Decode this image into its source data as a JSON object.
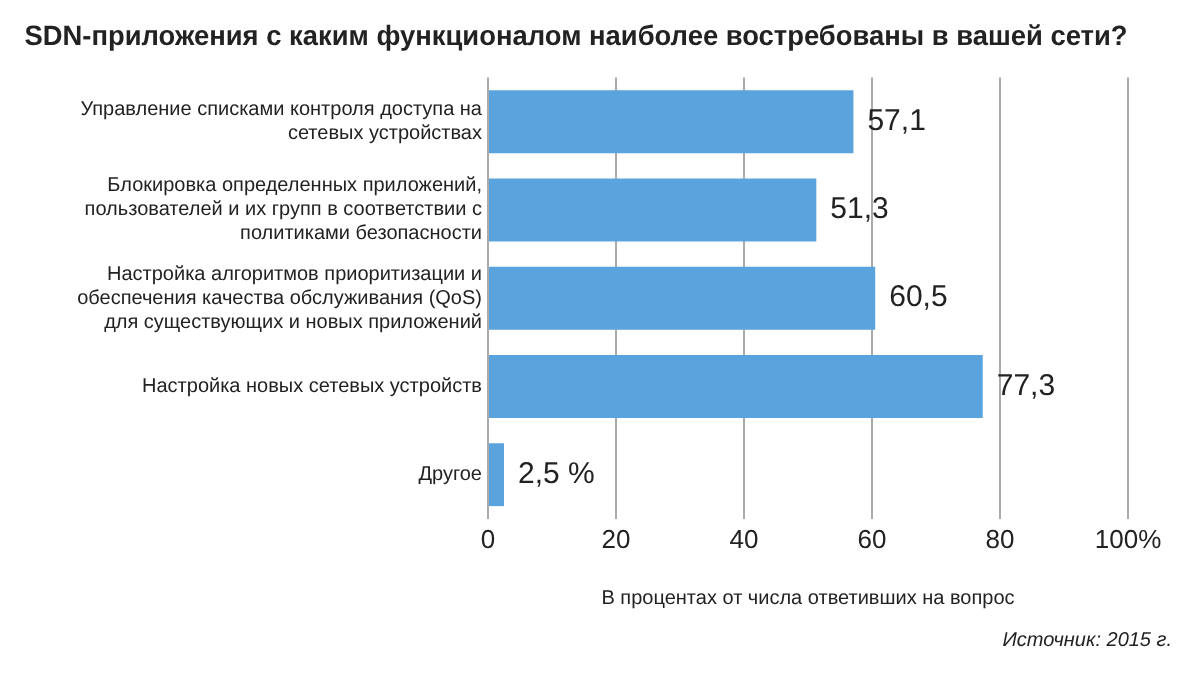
{
  "chart_data": {
    "type": "bar",
    "orientation": "horizontal",
    "title": "SDN-приложения с каким функционалом наиболее востребованы в вашей сети?",
    "categories": [
      "Управление списками контроля доступа на сетевых устройствах",
      "Блокировка определенных приложений, пользователей и их групп в соответствии с политиками безопасности",
      "Настройка алгоритмов приоритизации и обеспечения качества обслуживания (QoS) для существующих и новых приложений",
      "Настройка новых сетевых устройств",
      "Другое"
    ],
    "values": [
      57.1,
      51.3,
      60.5,
      77.3,
      2.5
    ],
    "value_labels": [
      "57,1",
      "51,3",
      "60,5",
      "77,3",
      "2,5 %"
    ],
    "color": "#5ba3dc",
    "xlim": [
      0,
      100
    ],
    "xticks": [
      0,
      20,
      40,
      60,
      80,
      {
        "value": 100,
        "label": "100%"
      }
    ],
    "xlabel": "В процентах от числа ответивших на вопрос",
    "grid": "x",
    "legend": false,
    "annotations": [
      "Источник: 2015 г."
    ]
  }
}
